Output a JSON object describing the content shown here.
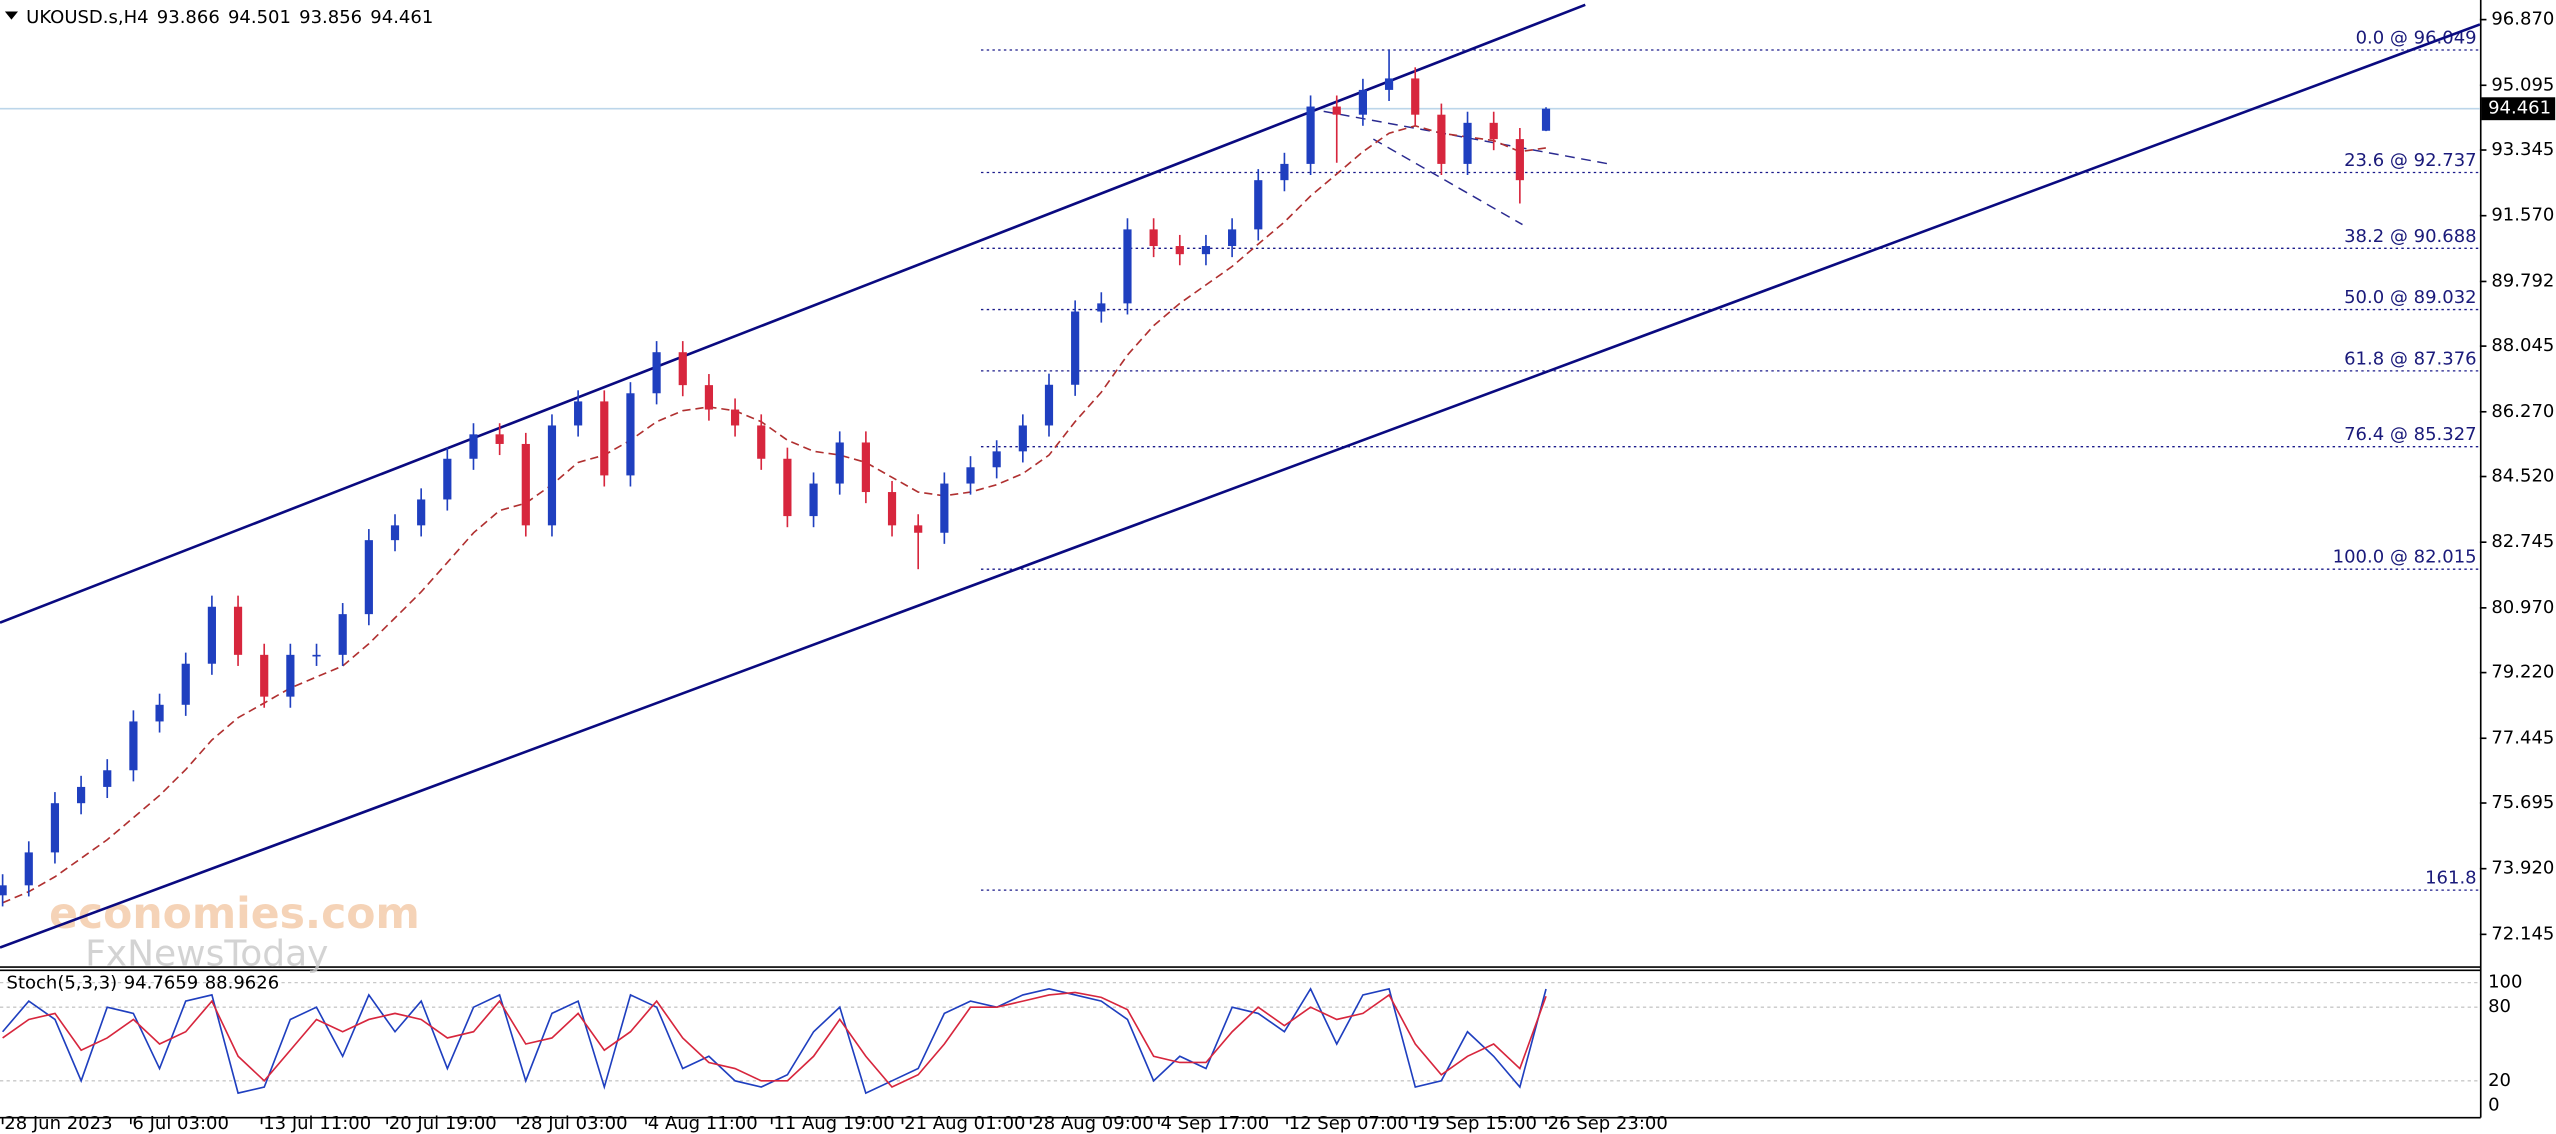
{
  "chart_data": {
    "type": "candlestick",
    "symbol": "UKOUSD.s,H4",
    "up_color": "#1f3fbf",
    "down_color": "#d7263d",
    "open": [
      73.2,
      73.47,
      74.36,
      75.69,
      76.13,
      76.58,
      77.9,
      78.35,
      79.46,
      81.0,
      79.7,
      78.57,
      79.7,
      79.7,
      80.8,
      82.8,
      83.2,
      83.9,
      85.0,
      85.66,
      85.4,
      83.2,
      85.9,
      86.55,
      84.55,
      86.77,
      87.88,
      86.99,
      86.33,
      85.9,
      85.0,
      83.45,
      84.33,
      85.44,
      84.1,
      83.2,
      83.0,
      84.33,
      84.77,
      85.2,
      85.9,
      87.0,
      88.98,
      89.2,
      91.2,
      90.75,
      90.53,
      90.75,
      91.2,
      92.53,
      92.97,
      94.52,
      94.3,
      94.97,
      95.28,
      94.3,
      92.97,
      94.08,
      93.64,
      93.866
    ],
    "high": [
      73.77,
      74.66,
      75.99,
      76.43,
      76.88,
      78.2,
      78.65,
      79.76,
      81.3,
      81.3,
      80.0,
      80.0,
      80.0,
      81.1,
      83.1,
      83.5,
      84.2,
      85.3,
      85.96,
      85.96,
      85.7,
      86.2,
      86.85,
      86.85,
      87.07,
      88.18,
      88.18,
      87.29,
      86.63,
      86.2,
      85.3,
      84.63,
      85.74,
      85.74,
      84.4,
      83.5,
      84.63,
      85.07,
      85.5,
      86.2,
      87.3,
      89.28,
      89.5,
      91.5,
      91.5,
      91.05,
      91.05,
      91.5,
      92.83,
      93.27,
      94.82,
      94.82,
      95.27,
      96.049,
      95.58,
      94.6,
      94.38,
      94.38,
      93.94,
      94.501
    ],
    "low": [
      72.9,
      73.17,
      74.06,
      75.39,
      75.83,
      76.28,
      77.6,
      78.05,
      79.16,
      79.4,
      78.27,
      78.27,
      79.4,
      79.4,
      80.5,
      82.5,
      82.9,
      83.6,
      84.7,
      85.1,
      82.9,
      82.9,
      85.6,
      84.25,
      84.25,
      86.47,
      86.69,
      86.03,
      85.6,
      84.7,
      83.15,
      83.15,
      84.03,
      83.8,
      82.9,
      82.015,
      82.7,
      84.03,
      84.47,
      84.9,
      85.6,
      86.7,
      88.68,
      88.9,
      90.45,
      90.23,
      90.23,
      90.45,
      90.9,
      92.23,
      92.67,
      93.0,
      94.0,
      94.67,
      94.0,
      92.67,
      92.67,
      93.34,
      91.9,
      93.856
    ],
    "close": [
      73.47,
      74.36,
      75.69,
      76.13,
      76.58,
      77.9,
      78.35,
      79.46,
      81.0,
      79.7,
      78.57,
      79.7,
      79.7,
      80.8,
      82.8,
      83.2,
      83.9,
      85.0,
      85.66,
      85.4,
      83.2,
      85.9,
      86.55,
      84.55,
      86.77,
      87.88,
      86.99,
      86.33,
      85.9,
      85.0,
      83.45,
      84.33,
      85.44,
      84.1,
      83.2,
      83.0,
      84.33,
      84.77,
      85.2,
      85.9,
      87.0,
      88.98,
      89.2,
      91.2,
      90.75,
      90.53,
      90.75,
      91.2,
      92.53,
      92.97,
      94.52,
      94.3,
      94.97,
      95.28,
      94.3,
      92.97,
      94.08,
      93.64,
      92.53,
      94.461
    ],
    "ma": {
      "color": "#b03030",
      "values": [
        73.0,
        73.3,
        73.7,
        74.2,
        74.7,
        75.3,
        75.9,
        76.6,
        77.4,
        78.0,
        78.4,
        78.8,
        79.1,
        79.4,
        80.0,
        80.7,
        81.4,
        82.2,
        83.0,
        83.6,
        83.8,
        84.3,
        84.9,
        85.1,
        85.5,
        86.0,
        86.3,
        86.4,
        86.3,
        86.0,
        85.5,
        85.2,
        85.1,
        84.9,
        84.5,
        84.1,
        84.0,
        84.1,
        84.3,
        84.6,
        85.1,
        86.0,
        86.8,
        87.8,
        88.6,
        89.2,
        89.7,
        90.2,
        90.8,
        91.4,
        92.1,
        92.7,
        93.3,
        93.8,
        94.0,
        93.8,
        93.7,
        93.6,
        93.3,
        93.4
      ]
    },
    "xlim": [
      -0.1,
      94.7
    ],
    "xticks": [
      {
        "value": 0,
        "label": "28 Jun 2023"
      },
      {
        "value": 4.9,
        "label": "6 Jul 03:00"
      },
      {
        "value": 9.9,
        "label": "13 Jul 11:00"
      },
      {
        "value": 14.7,
        "label": "20 Jul 19:00"
      },
      {
        "value": 19.7,
        "label": "28 Jul 03:00"
      },
      {
        "value": 24.6,
        "label": "4 Aug 11:00"
      },
      {
        "value": 29.4,
        "label": "11 Aug 19:00"
      },
      {
        "value": 34.4,
        "label": "21 Aug 01:00"
      },
      {
        "value": 39.3,
        "label": "28 Aug 09:00"
      },
      {
        "value": 44.2,
        "label": "4 Sep 17:00"
      },
      {
        "value": 49.1,
        "label": "12 Sep 07:00"
      },
      {
        "value": 54.0,
        "label": "19 Sep 15:00"
      },
      {
        "value": 59.0,
        "label": "26 Sep 23:00"
      }
    ],
    "ylim": [
      71.26,
      97.4
    ],
    "yticks": [
      {
        "value": 96.87,
        "label": "96.870"
      },
      95.095,
      93.345,
      {
        "value": 91.57,
        "label": "91.570"
      },
      89.792,
      88.045,
      {
        "value": 86.27,
        "label": "86.270"
      },
      {
        "value": 84.52,
        "label": "84.520"
      },
      82.745,
      {
        "value": 80.97,
        "label": "80.970"
      },
      {
        "value": 79.22,
        "label": "79.220"
      },
      77.445,
      75.695,
      {
        "value": 73.92,
        "label": "73.920"
      },
      72.145
    ],
    "trendlines": [
      {
        "color": "#0a0a80",
        "dashed": false,
        "x": [
          -0.1,
          60.5
        ],
        "y": [
          80.57,
          97.27
        ]
      },
      {
        "color": "#0a0a80",
        "dashed": false,
        "x": [
          -0.1,
          94.7
        ],
        "y": [
          71.79,
          96.74
        ]
      },
      {
        "color": "#2a2a90",
        "dashed": true,
        "x": [
          50.5,
          61.4
        ],
        "y": [
          94.39,
          92.97
        ]
      },
      {
        "color": "#2a2a90",
        "dashed": true,
        "x": [
          52.4,
          58.1
        ],
        "y": [
          93.64,
          91.33
        ]
      }
    ],
    "fib": {
      "color": "#1a1a8a",
      "start": 37.4,
      "levels": [
        {
          "label": "0.0 @ 96.049",
          "value": 96.049
        },
        {
          "label": "23.6 @ 92.737",
          "value": 92.737
        },
        {
          "label": "38.2 @ 90.688",
          "value": 90.688
        },
        {
          "label": "50.0 @ 89.032",
          "value": 89.032
        },
        {
          "label": "61.8 @ 87.376",
          "value": 87.376
        },
        {
          "label": "76.4 @ 85.327",
          "value": 85.327
        },
        {
          "label": "100.0 @ 82.015",
          "value": 82.015
        },
        {
          "label": "161.8",
          "value": 73.34
        }
      ]
    },
    "watermark": [
      "economies.com",
      "FxNewsToday"
    ],
    "stochastic": {
      "title": "Stoch(5,3,3)",
      "ylim": [
        -10,
        110
      ],
      "yticks": [
        100,
        80,
        20,
        0
      ],
      "k": {
        "color": "#1f3fbf",
        "values": [
          60,
          85,
          70,
          20,
          80,
          75,
          30,
          85,
          90,
          10,
          15,
          70,
          80,
          40,
          90,
          60,
          85,
          30,
          80,
          90,
          20,
          75,
          85,
          15,
          90,
          80,
          30,
          40,
          20,
          15,
          25,
          60,
          80,
          10,
          20,
          30,
          75,
          85,
          80,
          90,
          95,
          90,
          85,
          70,
          20,
          40,
          30,
          80,
          75,
          60,
          95,
          50,
          90,
          95,
          15,
          20,
          60,
          40,
          15,
          94.7659
        ]
      },
      "d": {
        "color": "#d7263d",
        "values": [
          55,
          70,
          75,
          45,
          55,
          70,
          50,
          60,
          85,
          40,
          20,
          45,
          70,
          60,
          70,
          75,
          70,
          55,
          60,
          85,
          50,
          55,
          75,
          45,
          60,
          85,
          55,
          35,
          30,
          20,
          20,
          40,
          70,
          40,
          15,
          25,
          50,
          80,
          80,
          85,
          90,
          92,
          88,
          78,
          40,
          35,
          35,
          60,
          80,
          65,
          80,
          70,
          75,
          90,
          50,
          25,
          40,
          50,
          30,
          88.9626
        ]
      }
    }
  }
}
